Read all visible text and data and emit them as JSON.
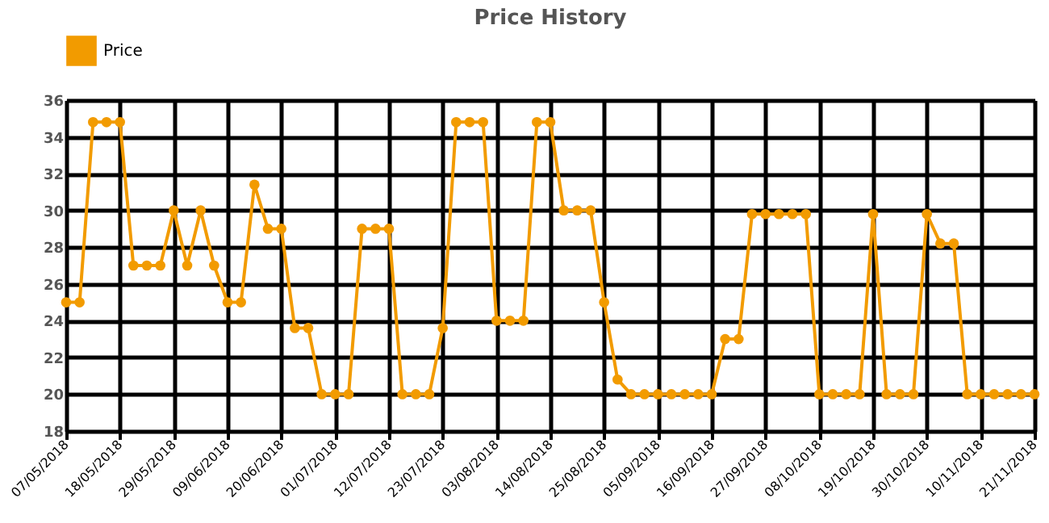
{
  "chart_data": {
    "type": "line",
    "title": "Price History",
    "categories": [
      "07/05/2018",
      null,
      null,
      null,
      "18/05/2018",
      null,
      null,
      null,
      "29/05/2018",
      null,
      null,
      null,
      "09/06/2018",
      null,
      null,
      null,
      "20/06/2018",
      null,
      null,
      null,
      "01/07/2018",
      null,
      null,
      null,
      "12/07/2018",
      null,
      null,
      null,
      "23/07/2018",
      null,
      null,
      null,
      "03/08/2018",
      null,
      null,
      null,
      "14/08/2018",
      null,
      null,
      null,
      "25/08/2018",
      null,
      null,
      null,
      "05/09/2018",
      null,
      null,
      null,
      "16/09/2018",
      null,
      null,
      null,
      "27/09/2018",
      null,
      null,
      null,
      "08/10/2018",
      null,
      null,
      null,
      "19/10/2018",
      null,
      null,
      null,
      "30/10/2018",
      null,
      null,
      null,
      "10/11/2018",
      null,
      null,
      null,
      "21/11/2018"
    ],
    "series": [
      {
        "name": "Price",
        "color": "#f29b00",
        "values": [
          25,
          25,
          34.8,
          34.8,
          34.8,
          27,
          27,
          27,
          30,
          27,
          30,
          27,
          25,
          25,
          31.4,
          29,
          29,
          23.6,
          23.6,
          20,
          20,
          20,
          29,
          29,
          29,
          20,
          20,
          20,
          23.6,
          34.8,
          34.8,
          34.8,
          24,
          24,
          24,
          34.8,
          34.8,
          30,
          30,
          30,
          25,
          20.8,
          20,
          20,
          20,
          20,
          20,
          20,
          20,
          23,
          23,
          29.8,
          29.8,
          29.8,
          29.8,
          29.8,
          20,
          20,
          20,
          20,
          29.8,
          20,
          20,
          20,
          29.8,
          28.2,
          28.2,
          20,
          20,
          20,
          20,
          20,
          20
        ]
      }
    ],
    "ylim": [
      18,
      36
    ],
    "yticks": [
      18,
      20,
      22,
      24,
      26,
      28,
      30,
      32,
      34,
      36
    ],
    "grid": true,
    "legend": "top",
    "marker": "circle",
    "line_style": "solid"
  }
}
